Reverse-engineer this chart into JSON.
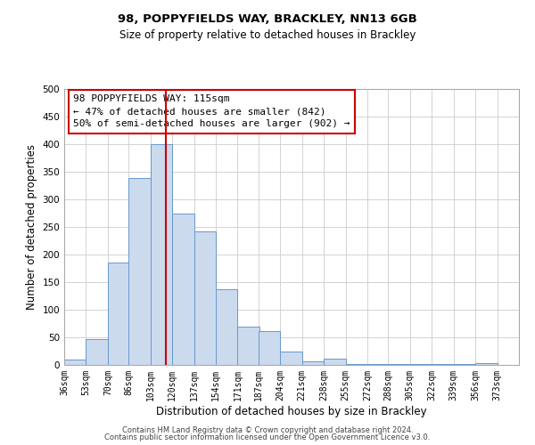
{
  "title": "98, POPPYFIELDS WAY, BRACKLEY, NN13 6GB",
  "subtitle": "Size of property relative to detached houses in Brackley",
  "xlabel": "Distribution of detached houses by size in Brackley",
  "ylabel": "Number of detached properties",
  "bar_left_edges": [
    36,
    53,
    70,
    86,
    103,
    120,
    137,
    154,
    171,
    187,
    204,
    221,
    238,
    255,
    272,
    288,
    305,
    322,
    339,
    356
  ],
  "bar_heights": [
    10,
    46,
    185,
    338,
    400,
    275,
    242,
    137,
    70,
    62,
    25,
    7,
    12,
    1,
    1,
    1,
    1,
    1,
    1,
    3
  ],
  "bin_width": 17,
  "bar_color": "#ccdaee",
  "bar_edge_color": "#6699cc",
  "tick_labels": [
    "36sqm",
    "53sqm",
    "70sqm",
    "86sqm",
    "103sqm",
    "120sqm",
    "137sqm",
    "154sqm",
    "171sqm",
    "187sqm",
    "204sqm",
    "221sqm",
    "238sqm",
    "255sqm",
    "272sqm",
    "288sqm",
    "305sqm",
    "322sqm",
    "339sqm",
    "356sqm",
    "373sqm"
  ],
  "tick_positions": [
    36,
    53,
    70,
    86,
    103,
    120,
    137,
    154,
    171,
    187,
    204,
    221,
    238,
    255,
    272,
    288,
    305,
    322,
    339,
    356,
    373
  ],
  "vline_x": 115,
  "vline_color": "#cc0000",
  "ylim": [
    0,
    500
  ],
  "yticks": [
    0,
    50,
    100,
    150,
    200,
    250,
    300,
    350,
    400,
    450,
    500
  ],
  "annotation_line1": "98 POPPYFIELDS WAY: 115sqm",
  "annotation_line2": "← 47% of detached houses are smaller (842)",
  "annotation_line3": "50% of semi-detached houses are larger (902) →",
  "annotation_box_color": "#cc0000",
  "annotation_text_fontsize": 8.0,
  "footer_line1": "Contains HM Land Registry data © Crown copyright and database right 2024.",
  "footer_line2": "Contains public sector information licensed under the Open Government Licence v3.0.",
  "background_color": "#ffffff",
  "grid_color": "#cccccc"
}
